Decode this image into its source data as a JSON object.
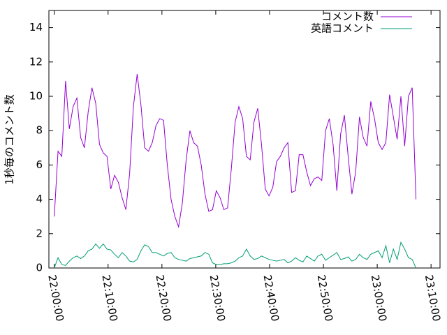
{
  "chart_data": {
    "type": "line",
    "y_label": "1秒毎のコメント数",
    "x": [
      "22:00:00",
      "22:00:42",
      "22:01:24",
      "22:02:06",
      "22:02:48",
      "22:03:30",
      "22:04:12",
      "22:04:54",
      "22:05:36",
      "22:06:18",
      "22:07:00",
      "22:07:42",
      "22:08:24",
      "22:09:06",
      "22:09:48",
      "22:10:30",
      "22:11:12",
      "22:11:54",
      "22:12:36",
      "22:13:18",
      "22:14:00",
      "22:14:42",
      "22:15:24",
      "22:16:06",
      "22:16:48",
      "22:17:30",
      "22:18:12",
      "22:18:54",
      "22:19:36",
      "22:20:18",
      "22:21:00",
      "22:21:42",
      "22:22:24",
      "22:23:06",
      "22:23:48",
      "22:24:30",
      "22:25:12",
      "22:25:54",
      "22:26:36",
      "22:27:18",
      "22:28:00",
      "22:28:42",
      "22:29:24",
      "22:30:06",
      "22:30:48",
      "22:31:30",
      "22:32:12",
      "22:32:54",
      "22:33:36",
      "22:34:18",
      "22:35:00",
      "22:35:42",
      "22:36:24",
      "22:37:06",
      "22:37:48",
      "22:38:30",
      "22:39:12",
      "22:39:54",
      "22:40:36",
      "22:41:18",
      "22:42:00",
      "22:42:42",
      "22:43:24",
      "22:44:06",
      "22:44:48",
      "22:45:30",
      "22:46:12",
      "22:46:54",
      "22:47:36",
      "22:48:18",
      "22:49:00",
      "22:49:42",
      "22:50:24",
      "22:51:06",
      "22:51:48",
      "22:52:30",
      "22:53:12",
      "22:53:54",
      "22:54:36",
      "22:55:18",
      "22:56:00",
      "22:56:42",
      "22:57:24",
      "22:58:06",
      "22:58:48",
      "22:59:30",
      "23:00:12",
      "23:00:54",
      "23:01:36",
      "23:02:18",
      "23:03:00",
      "23:03:42",
      "23:04:24",
      "23:05:06",
      "23:05:48",
      "23:06:30",
      "23:07:12"
    ],
    "series": [
      {
        "name": "コメント数",
        "color": "#9400d3",
        "values": [
          3.0,
          6.8,
          6.5,
          10.9,
          8.1,
          9.4,
          9.9,
          7.6,
          7.0,
          9.1,
          10.5,
          9.6,
          7.2,
          6.7,
          6.5,
          4.6,
          5.4,
          5.0,
          4.1,
          3.4,
          5.5,
          9.4,
          11.3,
          9.5,
          7.0,
          6.8,
          7.3,
          8.3,
          8.7,
          8.6,
          6.0,
          4.0,
          3.0,
          2.4,
          3.8,
          6.3,
          8.0,
          7.3,
          7.1,
          6.0,
          4.3,
          3.3,
          3.4,
          4.5,
          4.1,
          3.4,
          3.5,
          5.8,
          8.5,
          9.4,
          8.7,
          6.5,
          6.3,
          8.5,
          9.3,
          7.2,
          4.6,
          4.2,
          4.7,
          6.2,
          6.5,
          7.0,
          7.3,
          4.4,
          4.5,
          6.6,
          6.6,
          5.6,
          4.8,
          5.2,
          5.3,
          5.1,
          8.0,
          8.7,
          7.2,
          4.5,
          7.8,
          8.9,
          6.5,
          4.3,
          5.6,
          8.8,
          7.6,
          7.1,
          9.7,
          8.7,
          7.3,
          6.9,
          7.3,
          10.1,
          8.8,
          7.5,
          10.0,
          7.1,
          10.0,
          10.5,
          4.0
        ]
      },
      {
        "name": "英語コメント",
        "color": "#009e73",
        "values": [
          0.0,
          0.6,
          0.2,
          0.15,
          0.4,
          0.6,
          0.7,
          0.55,
          0.7,
          1.0,
          1.1,
          1.4,
          1.15,
          1.4,
          1.1,
          1.05,
          0.8,
          0.6,
          0.9,
          0.7,
          0.4,
          0.35,
          0.5,
          1.0,
          1.35,
          1.25,
          0.9,
          0.9,
          0.8,
          0.7,
          0.85,
          0.9,
          0.6,
          0.5,
          0.45,
          0.4,
          0.55,
          0.6,
          0.65,
          0.7,
          0.9,
          0.8,
          0.3,
          0.2,
          0.2,
          0.25,
          0.25,
          0.3,
          0.4,
          0.6,
          0.7,
          1.1,
          0.7,
          0.5,
          0.55,
          0.7,
          0.6,
          0.5,
          0.45,
          0.4,
          0.45,
          0.5,
          0.3,
          0.4,
          0.6,
          0.45,
          0.35,
          0.7,
          0.55,
          0.4,
          0.7,
          0.8,
          0.45,
          0.6,
          0.75,
          0.9,
          0.5,
          0.55,
          0.65,
          0.4,
          0.5,
          0.8,
          0.6,
          0.5,
          0.8,
          0.9,
          1.0,
          0.6,
          1.3,
          0.3,
          1.1,
          0.5,
          1.5,
          1.1,
          0.6,
          0.5,
          0.0
        ]
      }
    ],
    "xlim": [
      "21:59:00",
      "23:11:40"
    ],
    "xticks": [
      "22:00:00",
      "22:10:00",
      "22:20:00",
      "22:30:00",
      "22:40:00",
      "22:50:00",
      "23:00:00",
      "23:10:00"
    ],
    "ylim": [
      0,
      15
    ],
    "yticks": [
      0,
      2,
      4,
      6,
      8,
      10,
      12,
      14
    ],
    "legend": "top-right"
  }
}
